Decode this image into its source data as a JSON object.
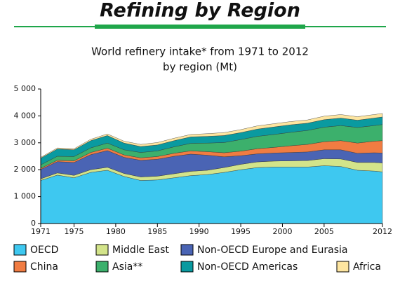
{
  "header": {
    "title": "Refining by Region"
  },
  "chart_data": {
    "type": "stacked_area",
    "title": [
      "World refinery intake* from 1971 to 2012",
      "by region (Mt)"
    ],
    "x": [
      1971,
      1973,
      1975,
      1977,
      1979,
      1981,
      1983,
      1985,
      1987,
      1989,
      1991,
      1993,
      1995,
      1997,
      1999,
      2001,
      2003,
      2005,
      2007,
      2009,
      2011,
      2012
    ],
    "xlim": [
      1971,
      2012
    ],
    "xticks": [
      1971,
      1975,
      1980,
      1985,
      1990,
      1995,
      2000,
      2005,
      2012
    ],
    "ylim": [
      0,
      5000
    ],
    "yticks": [
      0,
      {
        "value": 1000,
        "label": "1 000"
      },
      {
        "value": 2000,
        "label": "2 000"
      },
      {
        "value": 3000,
        "label": "3 000"
      },
      {
        "value": 4000,
        "label": "4 000"
      },
      {
        "value": 5000,
        "label": "5 000"
      }
    ],
    "series": [
      {
        "name": "OECD",
        "color": "#3ec8f0",
        "values": [
          1600,
          1800,
          1700,
          1900,
          1980,
          1750,
          1600,
          1620,
          1700,
          1780,
          1820,
          1900,
          2000,
          2080,
          2100,
          2100,
          2100,
          2150,
          2120,
          1980,
          1950,
          1920
        ]
      },
      {
        "name": "Middle East",
        "color": "#d3e48a",
        "values": [
          60,
          80,
          90,
          100,
          110,
          110,
          130,
          140,
          150,
          160,
          160,
          180,
          200,
          210,
          220,
          230,
          240,
          260,
          280,
          290,
          320,
          330
        ]
      },
      {
        "name": "Non-OECD Europe and Eurasia",
        "color": "#4a64b4",
        "values": [
          350,
          420,
          480,
          560,
          620,
          600,
          620,
          630,
          650,
          640,
          560,
          400,
          320,
          300,
          300,
          310,
          320,
          330,
          340,
          340,
          360,
          370
        ]
      },
      {
        "name": "China",
        "color": "#f07c42",
        "values": [
          40,
          50,
          60,
          80,
          90,
          90,
          90,
          100,
          110,
          120,
          130,
          150,
          170,
          190,
          210,
          250,
          280,
          300,
          340,
          380,
          430,
          460
        ]
      },
      {
        "name": "Asia**",
        "color": "#3cb06c",
        "values": [
          130,
          150,
          160,
          170,
          190,
          190,
          200,
          210,
          240,
          280,
          320,
          380,
          430,
          460,
          480,
          500,
          520,
          540,
          560,
          580,
          580,
          600
        ]
      },
      {
        "name": "Non-OECD Americas",
        "color": "#0a9aa0",
        "values": [
          250,
          270,
          250,
          270,
          280,
          250,
          220,
          220,
          230,
          240,
          250,
          260,
          260,
          270,
          280,
          280,
          270,
          280,
          280,
          270,
          280,
          280
        ]
      },
      {
        "name": "Africa",
        "color": "#fde5a0",
        "values": [
          30,
          40,
          40,
          50,
          60,
          70,
          80,
          90,
          90,
          90,
          100,
          110,
          110,
          120,
          120,
          120,
          120,
          130,
          130,
          130,
          130,
          130
        ]
      }
    ]
  }
}
